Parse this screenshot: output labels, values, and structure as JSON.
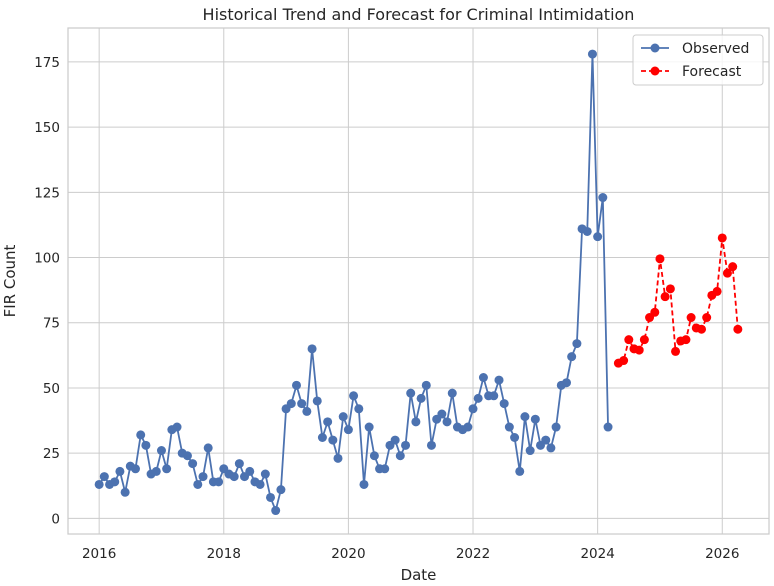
{
  "chart_data": {
    "type": "line",
    "title": "Historical Trend and Forecast for Criminal Intimidation",
    "xlabel": "Date",
    "ylabel": "FIR Count",
    "xlim": [
      2015.5,
      2026.75
    ],
    "ylim": [
      -6,
      188
    ],
    "xticks": [
      2016,
      2018,
      2020,
      2022,
      2024,
      2026
    ],
    "yticks": [
      0,
      25,
      50,
      75,
      100,
      125,
      150,
      175
    ],
    "grid": true,
    "legend_position": "top-right",
    "series": [
      {
        "name": "Observed",
        "color": "#4c72b0",
        "line_style": "solid",
        "marker": "circle",
        "x": [
          2016.0,
          2016.083,
          2016.167,
          2016.25,
          2016.333,
          2016.417,
          2016.5,
          2016.583,
          2016.667,
          2016.75,
          2016.833,
          2016.917,
          2017.0,
          2017.083,
          2017.167,
          2017.25,
          2017.333,
          2017.417,
          2017.5,
          2017.583,
          2017.667,
          2017.75,
          2017.833,
          2017.917,
          2018.0,
          2018.083,
          2018.167,
          2018.25,
          2018.333,
          2018.417,
          2018.5,
          2018.583,
          2018.667,
          2018.75,
          2018.833,
          2018.917,
          2019.0,
          2019.083,
          2019.167,
          2019.25,
          2019.333,
          2019.417,
          2019.5,
          2019.583,
          2019.667,
          2019.75,
          2019.833,
          2019.917,
          2020.0,
          2020.083,
          2020.167,
          2020.25,
          2020.333,
          2020.417,
          2020.5,
          2020.583,
          2020.667,
          2020.75,
          2020.833,
          2020.917,
          2021.0,
          2021.083,
          2021.167,
          2021.25,
          2021.333,
          2021.417,
          2021.5,
          2021.583,
          2021.667,
          2021.75,
          2021.833,
          2021.917,
          2022.0,
          2022.083,
          2022.167,
          2022.25,
          2022.333,
          2022.417,
          2022.5,
          2022.583,
          2022.667,
          2022.75,
          2022.833,
          2022.917,
          2023.0,
          2023.083,
          2023.167,
          2023.25,
          2023.333,
          2023.417,
          2023.5,
          2023.583,
          2023.667,
          2023.75,
          2023.833,
          2023.917,
          2024.0,
          2024.083,
          2024.167
        ],
        "y": [
          13,
          16,
          13,
          14,
          18,
          10,
          20,
          19,
          32,
          28,
          17,
          18,
          26,
          19,
          34,
          35,
          25,
          24,
          21,
          13,
          16,
          27,
          14,
          14,
          19,
          17,
          16,
          21,
          16,
          18,
          14,
          13,
          17,
          8,
          3,
          11,
          42,
          44,
          51,
          44,
          41,
          65,
          45,
          31,
          37,
          30,
          23,
          39,
          34,
          47,
          42,
          13,
          35,
          24,
          19,
          19,
          28,
          30,
          24,
          28,
          48,
          37,
          46,
          51,
          28,
          38,
          40,
          37,
          48,
          35,
          34,
          35,
          42,
          46,
          54,
          47,
          47,
          53,
          44,
          35,
          31,
          18,
          39,
          26,
          38,
          28,
          30,
          27,
          35,
          51,
          52,
          62,
          67,
          111,
          110,
          178,
          108,
          123,
          35
        ]
      },
      {
        "name": "Forecast",
        "color": "#ff0000",
        "line_style": "dashed",
        "marker": "circle",
        "x": [
          2024.333,
          2024.417,
          2024.5,
          2024.583,
          2024.667,
          2024.75,
          2024.833,
          2024.917,
          2025.0,
          2025.083,
          2025.167,
          2025.25,
          2025.333,
          2025.417,
          2025.5,
          2025.583,
          2025.667,
          2025.75,
          2025.833,
          2025.917,
          2026.0,
          2026.083,
          2026.167,
          2026.25
        ],
        "y": [
          59.5,
          60.5,
          68.5,
          65,
          64.5,
          68.5,
          77,
          79,
          99.5,
          85,
          88,
          64,
          68,
          68.5,
          77,
          73,
          72.5,
          77,
          85.5,
          87,
          107.5,
          94,
          96.5,
          72.5
        ]
      }
    ]
  }
}
